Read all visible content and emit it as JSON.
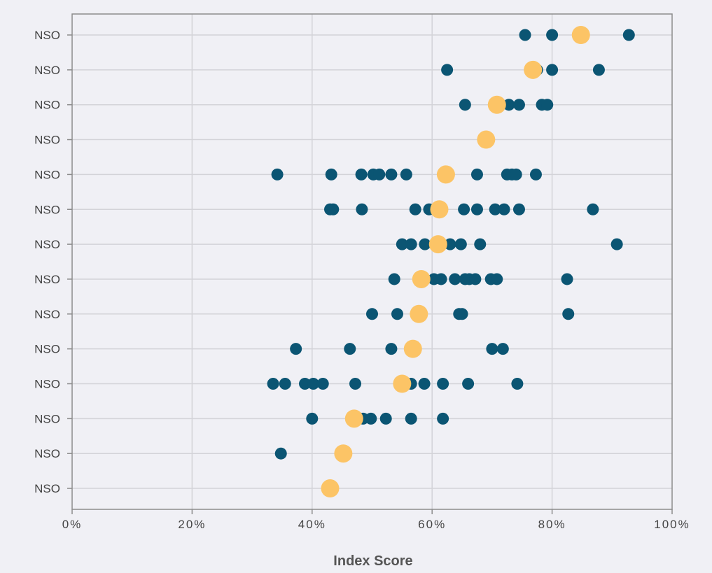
{
  "chart_data": {
    "type": "scatter",
    "title": "",
    "xlabel": "Index Score",
    "ylabel": "",
    "xlim": [
      0,
      100
    ],
    "x_tick_labels": [
      "0%",
      "20%",
      "40%",
      "60%",
      "80%",
      "100%"
    ],
    "x_tick_values": [
      0,
      20,
      40,
      60,
      80,
      100
    ],
    "grid": true,
    "legend": "none",
    "colors": {
      "points": "#0b5573",
      "highlight": "#fcc466"
    },
    "rows": [
      {
        "label": "NSO",
        "highlight": 84.8,
        "values": [
          75.5,
          80.0,
          92.8
        ]
      },
      {
        "label": "NSO",
        "highlight": 76.8,
        "values": [
          62.5,
          77.5,
          80.0,
          87.8
        ]
      },
      {
        "label": "NSO",
        "highlight": 70.8,
        "values": [
          65.5,
          72.8,
          74.5,
          78.3,
          79.2
        ]
      },
      {
        "label": "NSO",
        "highlight": 69.0,
        "values": []
      },
      {
        "label": "NSO",
        "highlight": 62.3,
        "values": [
          34.2,
          43.2,
          48.2,
          50.2,
          51.2,
          53.2,
          55.7,
          67.5,
          72.5,
          73.3,
          74.0,
          77.3
        ]
      },
      {
        "label": "NSO",
        "highlight": 61.2,
        "values": [
          43.0,
          43.5,
          48.3,
          57.2,
          59.5,
          65.3,
          67.5,
          70.5,
          72.0,
          74.5,
          86.8
        ]
      },
      {
        "label": "NSO",
        "highlight": 61.0,
        "values": [
          55.0,
          56.5,
          58.8,
          63.0,
          64.8,
          68.0,
          90.8
        ]
      },
      {
        "label": "NSO",
        "highlight": 58.2,
        "values": [
          53.7,
          60.3,
          61.5,
          63.8,
          65.5,
          66.2,
          67.2,
          69.8,
          70.8,
          82.5
        ]
      },
      {
        "label": "NSO",
        "highlight": 57.8,
        "values": [
          50.0,
          54.2,
          64.5,
          65.0,
          82.7
        ]
      },
      {
        "label": "NSO",
        "highlight": 56.8,
        "values": [
          37.3,
          46.3,
          53.2,
          70.0,
          71.8
        ]
      },
      {
        "label": "NSO",
        "highlight": 55.0,
        "values": [
          33.5,
          35.5,
          38.8,
          40.2,
          41.8,
          47.2,
          56.5,
          58.7,
          61.8,
          66.0,
          74.2
        ]
      },
      {
        "label": "NSO",
        "highlight": 47.0,
        "values": [
          40.0,
          48.5,
          49.8,
          52.3,
          56.5,
          61.8
        ]
      },
      {
        "label": "NSO",
        "highlight": 45.2,
        "values": [
          34.8
        ]
      },
      {
        "label": "NSO",
        "highlight": 43.0,
        "values": []
      }
    ]
  }
}
